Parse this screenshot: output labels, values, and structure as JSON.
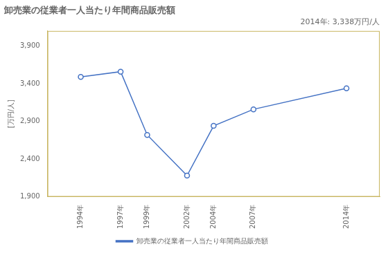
{
  "chart_data": {
    "type": "line",
    "title": "卸売業の従業者一人当たり年間商品販売額",
    "ylabel": "[万円/人]",
    "annotation": "2014年: 3,338万円/人",
    "x": [
      1994,
      1997,
      1999,
      2002,
      2004,
      2007,
      2014
    ],
    "series": [
      {
        "name": "卸売業の従業者一人当たり年間商品販売額",
        "color": "#4472C4",
        "marker": "circle",
        "values": [
          3490,
          3560,
          2720,
          2180,
          2840,
          3060,
          3338
        ]
      }
    ],
    "xlim": [
      1991.5,
      2016.5
    ],
    "xticks": [
      {
        "value": 1994,
        "label": "1994年"
      },
      {
        "value": 1997,
        "label": "1997年"
      },
      {
        "value": 1999,
        "label": "1999年"
      },
      {
        "value": 2002,
        "label": "2002年"
      },
      {
        "value": 2004,
        "label": "2004年"
      },
      {
        "value": 2007,
        "label": "2007年"
      },
      {
        "value": 2014,
        "label": "2014年"
      }
    ],
    "ylim": [
      1900,
      4100
    ],
    "yticks": [
      {
        "value": 1900,
        "label": "1,900"
      },
      {
        "value": 2400,
        "label": "2,400"
      },
      {
        "value": 2900,
        "label": "2,900"
      },
      {
        "value": 3400,
        "label": "3,400"
      },
      {
        "value": 3900,
        "label": "3,900"
      }
    ],
    "grid": false,
    "legend": "bottom"
  }
}
